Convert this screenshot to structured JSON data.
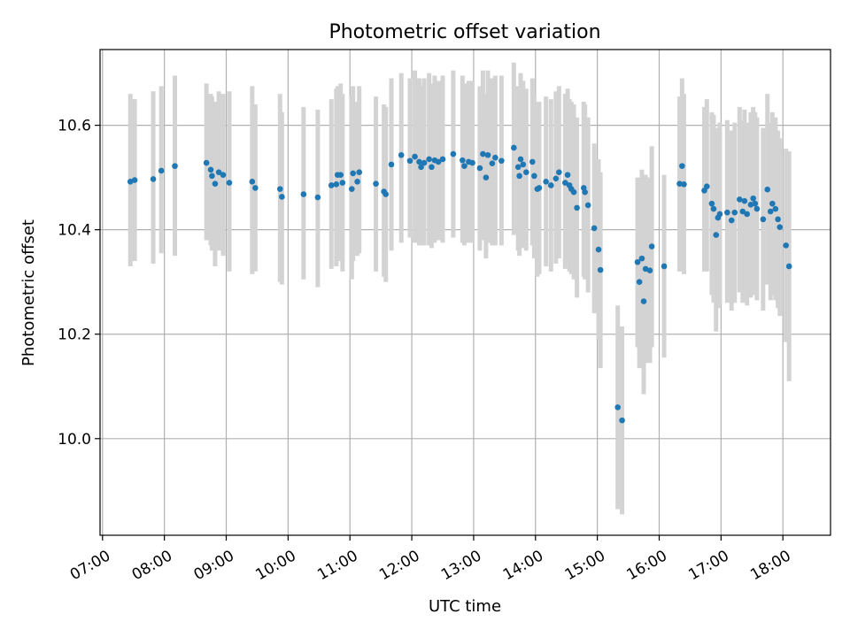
{
  "chart_data": {
    "type": "scatter",
    "title": "Photometric offset variation",
    "xlabel": "UTC time",
    "ylabel": "Photometric offset",
    "x_tick_labels": [
      "07:00",
      "08:00",
      "09:00",
      "10:00",
      "11:00",
      "12:00",
      "13:00",
      "14:00",
      "15:00",
      "16:00",
      "17:00",
      "18:00"
    ],
    "y_tick_labels": [
      "10.0",
      "10.2",
      "10.4",
      "10.6"
    ],
    "y_ticks": [
      10.0,
      10.2,
      10.4,
      10.6
    ],
    "x_ticks_hours": [
      7,
      8,
      9,
      10,
      11,
      12,
      13,
      14,
      15,
      16,
      17,
      18
    ],
    "xlim_hours": [
      6.96,
      18.77
    ],
    "ylim": [
      9.815,
      10.745
    ],
    "grid": true,
    "marker_color": "#1f77b4",
    "errorbar_color": "#d3d3d3",
    "series": [
      {
        "points": [
          [
            7.45,
            10.492,
            10.33,
            10.66
          ],
          [
            7.52,
            10.495,
            10.34,
            10.65
          ],
          [
            7.82,
            10.497,
            10.335,
            10.665
          ],
          [
            7.95,
            10.513,
            10.355,
            10.675
          ],
          [
            8.17,
            10.522,
            10.35,
            10.695
          ],
          [
            8.68,
            10.528,
            10.38,
            10.68
          ],
          [
            8.75,
            10.515,
            10.37,
            10.66
          ],
          [
            8.77,
            10.503,
            10.36,
            10.655
          ],
          [
            8.82,
            10.488,
            10.33,
            10.645
          ],
          [
            8.88,
            10.51,
            10.36,
            10.665
          ],
          [
            8.95,
            10.505,
            10.35,
            10.66
          ],
          [
            9.05,
            10.49,
            10.32,
            10.665
          ],
          [
            9.42,
            10.492,
            10.315,
            10.675
          ],
          [
            9.47,
            10.48,
            10.32,
            10.64
          ],
          [
            9.87,
            10.478,
            10.3,
            10.66
          ],
          [
            9.9,
            10.463,
            10.295,
            10.625
          ],
          [
            10.25,
            10.468,
            10.305,
            10.635
          ],
          [
            10.48,
            10.462,
            10.29,
            10.63
          ],
          [
            10.7,
            10.485,
            10.325,
            10.65
          ],
          [
            10.78,
            10.487,
            10.33,
            10.67
          ],
          [
            10.8,
            10.505,
            10.345,
            10.675
          ],
          [
            10.85,
            10.505,
            10.34,
            10.68
          ],
          [
            10.88,
            10.49,
            10.32,
            10.66
          ],
          [
            11.03,
            10.478,
            10.305,
            10.655
          ],
          [
            11.05,
            10.508,
            10.34,
            10.675
          ],
          [
            11.12,
            10.492,
            10.35,
            10.645
          ],
          [
            11.15,
            10.51,
            10.355,
            10.675
          ],
          [
            11.42,
            10.488,
            10.32,
            10.655
          ],
          [
            11.55,
            10.473,
            10.31,
            10.64
          ],
          [
            11.58,
            10.468,
            10.3,
            10.635
          ],
          [
            11.67,
            10.525,
            10.36,
            10.69
          ],
          [
            11.83,
            10.543,
            10.375,
            10.7
          ],
          [
            11.97,
            10.532,
            10.385,
            10.69
          ],
          [
            12.05,
            10.54,
            10.375,
            10.705
          ],
          [
            12.12,
            10.53,
            10.37,
            10.69
          ],
          [
            12.15,
            10.52,
            10.37,
            10.675
          ],
          [
            12.2,
            10.528,
            10.37,
            10.69
          ],
          [
            12.28,
            10.535,
            10.37,
            10.7
          ],
          [
            12.32,
            10.52,
            10.365,
            10.68
          ],
          [
            12.37,
            10.533,
            10.375,
            10.695
          ],
          [
            12.43,
            10.53,
            10.38,
            10.685
          ],
          [
            12.5,
            10.535,
            10.375,
            10.695
          ],
          [
            12.67,
            10.545,
            10.385,
            10.705
          ],
          [
            12.82,
            10.533,
            10.375,
            10.695
          ],
          [
            12.85,
            10.522,
            10.37,
            10.68
          ],
          [
            12.92,
            10.53,
            10.375,
            10.685
          ],
          [
            12.98,
            10.528,
            10.375,
            10.685
          ],
          [
            13.1,
            10.518,
            10.36,
            10.675
          ],
          [
            13.15,
            10.545,
            10.38,
            10.705
          ],
          [
            13.2,
            10.5,
            10.345,
            10.66
          ],
          [
            13.23,
            10.543,
            10.375,
            10.705
          ],
          [
            13.3,
            10.527,
            10.37,
            10.69
          ],
          [
            13.35,
            10.538,
            10.37,
            10.695
          ],
          [
            13.45,
            10.532,
            10.37,
            10.695
          ],
          [
            13.65,
            10.557,
            10.39,
            10.72
          ],
          [
            13.72,
            10.52,
            10.36,
            10.675
          ],
          [
            13.74,
            10.503,
            10.35,
            10.66
          ],
          [
            13.76,
            10.535,
            10.37,
            10.7
          ],
          [
            13.8,
            10.525,
            10.365,
            10.685
          ],
          [
            13.85,
            10.51,
            10.36,
            10.67
          ],
          [
            13.95,
            10.53,
            10.37,
            10.69
          ],
          [
            13.98,
            10.503,
            10.345,
            10.66
          ],
          [
            14.03,
            10.478,
            10.31,
            10.645
          ],
          [
            14.06,
            10.48,
            10.315,
            10.645
          ],
          [
            14.17,
            10.492,
            10.33,
            10.655
          ],
          [
            14.25,
            10.485,
            10.32,
            10.65
          ],
          [
            14.33,
            10.498,
            10.335,
            10.665
          ],
          [
            14.38,
            10.51,
            10.345,
            10.675
          ],
          [
            14.48,
            10.49,
            10.325,
            10.66
          ],
          [
            14.52,
            10.505,
            10.34,
            10.67
          ],
          [
            14.55,
            10.485,
            10.32,
            10.65
          ],
          [
            14.58,
            10.478,
            10.315,
            10.645
          ],
          [
            14.62,
            10.472,
            10.305,
            10.64
          ],
          [
            14.67,
            10.442,
            10.27,
            10.615
          ],
          [
            14.78,
            10.48,
            10.31,
            10.645
          ],
          [
            14.8,
            10.472,
            10.305,
            10.64
          ],
          [
            14.85,
            10.447,
            10.28,
            10.615
          ],
          [
            14.95,
            10.403,
            10.24,
            10.565
          ],
          [
            15.02,
            10.362,
            10.19,
            10.535
          ],
          [
            15.05,
            10.323,
            10.135,
            10.51
          ],
          [
            15.33,
            10.06,
            9.865,
            10.255
          ],
          [
            15.4,
            10.035,
            9.855,
            10.215
          ],
          [
            15.65,
            10.338,
            10.175,
            10.5
          ],
          [
            15.68,
            10.3,
            10.135,
            10.465
          ],
          [
            15.72,
            10.345,
            10.175,
            10.515
          ],
          [
            15.75,
            10.263,
            10.085,
            10.44
          ],
          [
            15.78,
            10.325,
            10.145,
            10.505
          ],
          [
            15.85,
            10.322,
            10.145,
            10.5
          ],
          [
            15.88,
            10.368,
            10.175,
            10.56
          ],
          [
            16.08,
            10.33,
            10.155,
            10.505
          ],
          [
            16.33,
            10.488,
            10.32,
            10.655
          ],
          [
            16.37,
            10.522,
            10.355,
            10.69
          ],
          [
            16.4,
            10.487,
            10.315,
            10.66
          ],
          [
            16.73,
            10.475,
            10.32,
            10.635
          ],
          [
            16.77,
            10.483,
            10.32,
            10.65
          ],
          [
            16.85,
            10.45,
            10.275,
            10.625
          ],
          [
            16.88,
            10.44,
            10.26,
            10.62
          ],
          [
            16.92,
            10.39,
            10.205,
            10.575
          ],
          [
            16.95,
            10.423,
            10.25,
            10.595
          ],
          [
            16.98,
            10.43,
            10.255,
            10.605
          ],
          [
            17.1,
            10.433,
            10.26,
            10.61
          ],
          [
            17.17,
            10.418,
            10.245,
            10.59
          ],
          [
            17.22,
            10.433,
            10.26,
            10.605
          ],
          [
            17.3,
            10.458,
            10.28,
            10.635
          ],
          [
            17.35,
            10.435,
            10.26,
            10.61
          ],
          [
            17.38,
            10.455,
            10.28,
            10.63
          ],
          [
            17.42,
            10.43,
            10.255,
            10.605
          ],
          [
            17.48,
            10.448,
            10.27,
            10.625
          ],
          [
            17.52,
            10.46,
            10.285,
            10.635
          ],
          [
            17.55,
            10.45,
            10.275,
            10.625
          ],
          [
            17.58,
            10.44,
            10.265,
            10.615
          ],
          [
            17.68,
            10.42,
            10.245,
            10.595
          ],
          [
            17.75,
            10.477,
            10.295,
            10.66
          ],
          [
            17.8,
            10.435,
            10.265,
            10.605
          ],
          [
            17.83,
            10.45,
            10.275,
            10.625
          ],
          [
            17.88,
            10.44,
            10.265,
            10.615
          ],
          [
            17.92,
            10.42,
            10.25,
            10.59
          ],
          [
            17.95,
            10.405,
            10.235,
            10.575
          ],
          [
            18.05,
            10.37,
            10.185,
            10.555
          ],
          [
            18.1,
            10.33,
            10.11,
            10.55
          ]
        ]
      }
    ]
  }
}
